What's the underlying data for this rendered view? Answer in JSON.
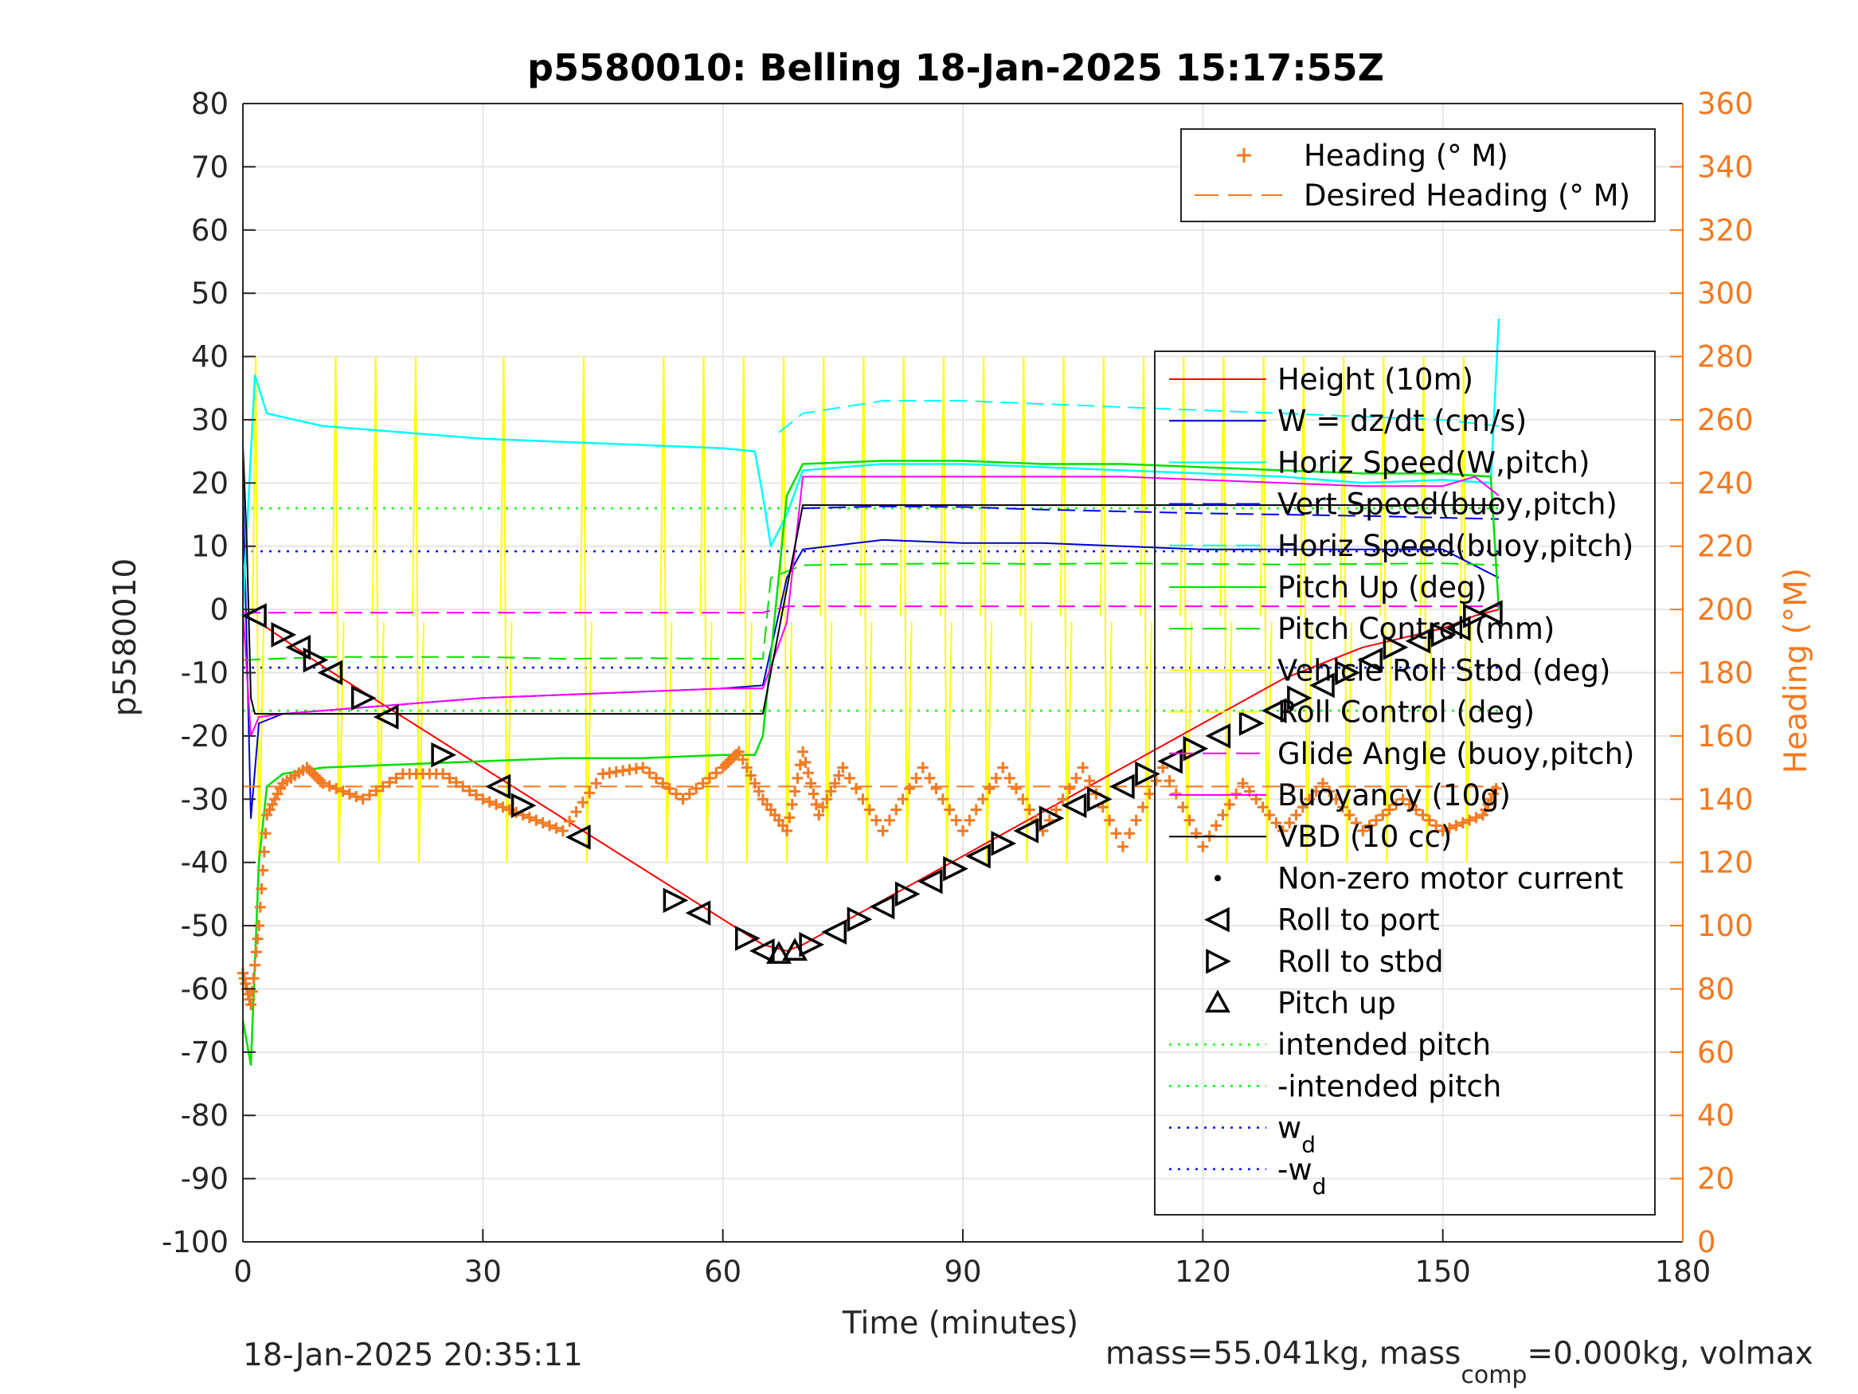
{
  "chart_data": {
    "type": "line",
    "title": "p5580010: Belling 18-Jan-2025 15:17:55Z",
    "xlabel": "Time (minutes)",
    "ylabel": "p5580010",
    "ylabel_right": "Heading (°M)",
    "xlim": [
      0,
      180
    ],
    "ylim": [
      -100,
      80
    ],
    "ylim_right": [
      0,
      360
    ],
    "x_ticks": [
      "0",
      "30",
      "60",
      "90",
      "120",
      "150",
      "180"
    ],
    "y_ticks": [
      "-100",
      "-90",
      "-80",
      "-70",
      "-60",
      "-50",
      "-40",
      "-30",
      "-20",
      "-10",
      "0",
      "10",
      "20",
      "30",
      "40",
      "50",
      "60",
      "70",
      "80"
    ],
    "y_ticks_right": [
      "0",
      "20",
      "40",
      "60",
      "80",
      "100",
      "120",
      "140",
      "160",
      "180",
      "200",
      "220",
      "240",
      "260",
      "280",
      "300",
      "320",
      "340",
      "360"
    ],
    "grid": true,
    "footer_left": "18-Jan-2025 20:35:11",
    "footer_right": "mass=55.041kg, mass",
    "footer_right_sub": "comp",
    "footer_right_tail": "=0.000kg, volmax",
    "colors": {
      "height": "#ff0000",
      "w": "#0000cd",
      "horiz_w": "#00ffff",
      "vert_buoy": "#0000ff",
      "horiz_buoy": "#00ffff",
      "pitch": "#00e000",
      "pitch_ctrl": "#00e000",
      "roll": "#ffff00",
      "roll_ctrl": "#ffff00",
      "glide": "#ff00ff",
      "buoyancy": "#ff00ff",
      "vbd": "#000000",
      "heading": "#f47920",
      "axis_right": "#f47920"
    },
    "legend_heading": [
      {
        "label": "Heading (° M)",
        "color": "#f47920",
        "style": "plus"
      },
      {
        "label": "Desired Heading (° M)",
        "color": "#f47920",
        "style": "dashed"
      }
    ],
    "legend_main": [
      {
        "label": "Height (10m)",
        "color": "#ff0000",
        "style": "solid"
      },
      {
        "label": "W = dz/dt (cm/s)",
        "color": "#0000cd",
        "style": "solid"
      },
      {
        "label": "Horiz Speed(W,pitch)",
        "color": "#00ffff",
        "style": "solid"
      },
      {
        "label": "Vert Speed(buoy,pitch)",
        "color": "#0000ff",
        "style": "dashed"
      },
      {
        "label": "Horiz Speed(buoy,pitch)",
        "color": "#00ffff",
        "style": "dashed"
      },
      {
        "label": "Pitch Up (deg)",
        "color": "#00e000",
        "style": "solid"
      },
      {
        "label": "Pitch Control (mm)",
        "color": "#00e000",
        "style": "dashed"
      },
      {
        "label": "Vehicle Roll Stbd (deg)",
        "color": "#ffff00",
        "style": "solid"
      },
      {
        "label": "Roll Control (deg)",
        "color": "#ffff00",
        "style": "dashed"
      },
      {
        "label": "Glide Angle (buoy,pitch)",
        "color": "#ff00ff",
        "style": "dashed"
      },
      {
        "label": "Buoyancy (10g)",
        "color": "#ff00ff",
        "style": "solid"
      },
      {
        "label": "VBD (10 cc)",
        "color": "#000000",
        "style": "solid"
      },
      {
        "label": "Non-zero motor current",
        "color": "#000000",
        "style": "dot"
      },
      {
        "label": "Roll to port",
        "color": "#000000",
        "style": "tri-left"
      },
      {
        "label": "Roll to stbd",
        "color": "#000000",
        "style": "tri-right"
      },
      {
        "label": "Pitch up",
        "color": "#000000",
        "style": "tri-up"
      },
      {
        "label": "intended pitch",
        "color": "#00ff00",
        "style": "dotted"
      },
      {
        "label": "-intended pitch",
        "color": "#00ff00",
        "style": "dotted"
      },
      {
        "label": "w",
        "sub": "d",
        "color": "#0000ff",
        "style": "dotted"
      },
      {
        "label": "-w",
        "sub": "d",
        "color": "#0000ff",
        "style": "dotted"
      }
    ],
    "series": [
      {
        "name": "Height (10m)",
        "x": [
          0,
          2,
          10,
          20,
          30,
          40,
          50,
          60,
          65,
          68,
          70,
          80,
          90,
          100,
          110,
          120,
          130,
          140,
          150,
          154,
          157
        ],
        "y": [
          -1,
          -2,
          -9,
          -17,
          -25,
          -33,
          -41,
          -49,
          -53,
          -54,
          -53,
          -46,
          -39,
          -32,
          -25,
          -18,
          -11,
          -6,
          -3,
          -1,
          0
        ]
      },
      {
        "name": "W = dz/dt (cm/s)",
        "x": [
          0,
          1,
          2,
          5,
          10,
          20,
          30,
          40,
          50,
          60,
          65,
          68,
          70,
          80,
          90,
          100,
          110,
          120,
          130,
          140,
          150,
          157
        ],
        "y": [
          20,
          -33,
          -18,
          -16.5,
          -16,
          -15,
          -14,
          -13.5,
          -13,
          -12.5,
          -12,
          5,
          9.5,
          11,
          10.5,
          10.5,
          10,
          9.5,
          9.5,
          9.5,
          9.5,
          5
        ]
      },
      {
        "name": "Horiz Speed(W,pitch)",
        "x": [
          0,
          1.5,
          3,
          10,
          20,
          30,
          40,
          50,
          60,
          64,
          65,
          66,
          68,
          70,
          80,
          90,
          100,
          110,
          120,
          130,
          140,
          150,
          156,
          157
        ],
        "y": [
          0,
          37,
          31,
          29,
          28,
          27,
          26.5,
          26,
          25.5,
          25,
          18,
          10,
          15,
          22,
          23,
          23,
          22.5,
          22,
          21.5,
          21,
          20,
          20.5,
          20,
          46
        ]
      },
      {
        "name": "Vert Speed(buoy,pitch)",
        "x": [
          70,
          80,
          90,
          100,
          110,
          120,
          130,
          140,
          150,
          157
        ],
        "y": [
          16,
          16.3,
          16.2,
          15.8,
          15.5,
          15.2,
          15,
          14.8,
          14.5,
          14.3
        ]
      },
      {
        "name": "Horiz Speed(buoy,pitch)",
        "x": [
          67,
          70,
          80,
          90,
          100,
          110,
          120,
          130,
          140,
          150,
          157
        ],
        "y": [
          28,
          31,
          33,
          33,
          32.5,
          32,
          31.5,
          31,
          30.5,
          30,
          29
        ]
      },
      {
        "name": "Pitch Up (deg)",
        "x": [
          0,
          1,
          2,
          3,
          5,
          10,
          20,
          30,
          40,
          50,
          60,
          64,
          65,
          68,
          70,
          80,
          90,
          100,
          110,
          120,
          130,
          140,
          150,
          156,
          157
        ],
        "y": [
          -65,
          -72,
          -40,
          -28,
          -26,
          -25,
          -24.5,
          -24,
          -23.5,
          -23.5,
          -23,
          -23,
          -20,
          18,
          23,
          23.5,
          23.5,
          23,
          23,
          22.5,
          22,
          21.5,
          21.5,
          21,
          0
        ]
      },
      {
        "name": "Pitch Control (mm)",
        "x": [
          0,
          10,
          20,
          30,
          40,
          50,
          60,
          65,
          66,
          70,
          80,
          90,
          100,
          110,
          120,
          130,
          140,
          150,
          157
        ],
        "y": [
          -8,
          -7.5,
          -7.5,
          -7.5,
          -7.8,
          -7.7,
          -7.8,
          -7.8,
          5,
          7,
          7.2,
          7.3,
          7.2,
          7.3,
          7.2,
          7.1,
          7.2,
          7.3,
          7
        ]
      },
      {
        "name": "Glide Angle (buoy,pitch)",
        "x": [
          0,
          10,
          30,
          50,
          65,
          68,
          70,
          100,
          130,
          157
        ],
        "y": [
          -0.5,
          -0.5,
          -0.5,
          -0.5,
          -0.5,
          0.5,
          0.5,
          0.5,
          0.5,
          0.5
        ]
      },
      {
        "name": "Buoyancy (10g)",
        "x": [
          0,
          1,
          2,
          5,
          10,
          20,
          30,
          40,
          50,
          60,
          65,
          68,
          70,
          80,
          90,
          100,
          110,
          120,
          130,
          140,
          150,
          154,
          157
        ],
        "y": [
          0,
          -20,
          -17,
          -16.5,
          -16,
          -15,
          -14,
          -13.5,
          -13,
          -12.5,
          -12.5,
          -2,
          21,
          21,
          21,
          21,
          21,
          20.5,
          20,
          19.5,
          19.5,
          21,
          18
        ]
      },
      {
        "name": "VBD (10 cc)",
        "x": [
          0,
          0.5,
          1,
          1.5,
          65,
          70,
          130,
          157
        ],
        "y": [
          26,
          10,
          -14,
          -16.5,
          -16.5,
          16.5,
          16.5,
          16.5
        ]
      },
      {
        "name": "Heading (° M)",
        "x": [
          0,
          1,
          2,
          3,
          5,
          8,
          10,
          15,
          20,
          25,
          30,
          35,
          40,
          45,
          50,
          55,
          60,
          62,
          65,
          68,
          70,
          72,
          75,
          80,
          85,
          90,
          95,
          100,
          105,
          110,
          115,
          120,
          125,
          130,
          135,
          140,
          145,
          150,
          155,
          157
        ],
        "y": [
          85,
          75,
          100,
          135,
          145,
          150,
          145,
          140,
          148,
          148,
          140,
          135,
          130,
          148,
          150,
          140,
          150,
          155,
          140,
          130,
          155,
          135,
          150,
          130,
          150,
          130,
          150,
          130,
          150,
          125,
          150,
          125,
          145,
          130,
          145,
          130,
          140,
          130,
          135,
          145
        ]
      },
      {
        "name": "Desired Heading (° M)",
        "x": [
          0,
          157
        ],
        "y": [
          144,
          144
        ]
      }
    ],
    "reference_lines": [
      {
        "name": "intended pitch",
        "y": 16,
        "color": "#00ff00"
      },
      {
        "name": "-intended pitch",
        "y": -16,
        "color": "#00ff00"
      },
      {
        "name": "w_d",
        "y": 9.2,
        "color": "#0000ff"
      },
      {
        "name": "-w_d",
        "y": -9.2,
        "color": "#0000ff"
      }
    ],
    "roll_pulses_x": [
      2,
      12,
      17,
      22,
      33,
      43,
      53,
      58,
      63,
      68,
      73,
      78,
      83,
      88,
      93,
      98,
      103,
      108,
      113,
      118,
      123,
      128,
      133,
      138,
      143,
      148,
      153
    ],
    "markers": [
      {
        "type": "tri-left",
        "x": 1.5,
        "y": -1
      },
      {
        "type": "tri-right",
        "x": 5,
        "y": -4
      },
      {
        "type": "tri-left",
        "x": 7,
        "y": -6
      },
      {
        "type": "tri-right",
        "x": 9,
        "y": -8
      },
      {
        "type": "tri-left",
        "x": 11,
        "y": -10
      },
      {
        "type": "tri-right",
        "x": 15,
        "y": -14
      },
      {
        "type": "tri-left",
        "x": 18,
        "y": -17
      },
      {
        "type": "tri-right",
        "x": 25,
        "y": -23
      },
      {
        "type": "tri-left",
        "x": 32,
        "y": -28
      },
      {
        "type": "tri-right",
        "x": 35,
        "y": -31
      },
      {
        "type": "tri-left",
        "x": 42,
        "y": -36
      },
      {
        "type": "tri-right",
        "x": 54,
        "y": -46
      },
      {
        "type": "tri-left",
        "x": 57,
        "y": -48
      },
      {
        "type": "tri-right",
        "x": 63,
        "y": -52
      },
      {
        "type": "tri-left",
        "x": 65,
        "y": -54
      },
      {
        "type": "tri-up",
        "x": 67,
        "y": -54.5
      },
      {
        "type": "tri-up",
        "x": 69,
        "y": -54
      },
      {
        "type": "tri-right",
        "x": 71,
        "y": -53
      },
      {
        "type": "tri-left",
        "x": 74,
        "y": -51
      },
      {
        "type": "tri-right",
        "x": 77,
        "y": -49
      },
      {
        "type": "tri-left",
        "x": 80,
        "y": -47
      },
      {
        "type": "tri-right",
        "x": 83,
        "y": -45
      },
      {
        "type": "tri-left",
        "x": 86,
        "y": -43
      },
      {
        "type": "tri-right",
        "x": 89,
        "y": -41
      },
      {
        "type": "tri-left",
        "x": 92,
        "y": -39
      },
      {
        "type": "tri-right",
        "x": 95,
        "y": -37
      },
      {
        "type": "tri-left",
        "x": 98,
        "y": -35
      },
      {
        "type": "tri-right",
        "x": 101,
        "y": -33
      },
      {
        "type": "tri-left",
        "x": 104,
        "y": -31
      },
      {
        "type": "tri-right",
        "x": 107,
        "y": -30
      },
      {
        "type": "tri-left",
        "x": 110,
        "y": -28
      },
      {
        "type": "tri-right",
        "x": 113,
        "y": -26
      },
      {
        "type": "tri-left",
        "x": 116,
        "y": -24
      },
      {
        "type": "tri-right",
        "x": 119,
        "y": -22
      },
      {
        "type": "tri-left",
        "x": 122,
        "y": -20
      },
      {
        "type": "tri-right",
        "x": 126,
        "y": -18
      },
      {
        "type": "tri-left",
        "x": 129,
        "y": -16
      },
      {
        "type": "tri-right",
        "x": 132,
        "y": -14
      },
      {
        "type": "tri-left",
        "x": 135,
        "y": -12
      },
      {
        "type": "tri-right",
        "x": 138,
        "y": -10
      },
      {
        "type": "tri-left",
        "x": 141,
        "y": -8
      },
      {
        "type": "tri-right",
        "x": 144,
        "y": -6
      },
      {
        "type": "tri-left",
        "x": 147,
        "y": -5
      },
      {
        "type": "tri-right",
        "x": 150,
        "y": -4
      },
      {
        "type": "tri-left",
        "x": 152,
        "y": -3
      },
      {
        "type": "tri-right",
        "x": 154,
        "y": -1
      },
      {
        "type": "tri-left",
        "x": 156,
        "y": -0.5
      }
    ]
  }
}
